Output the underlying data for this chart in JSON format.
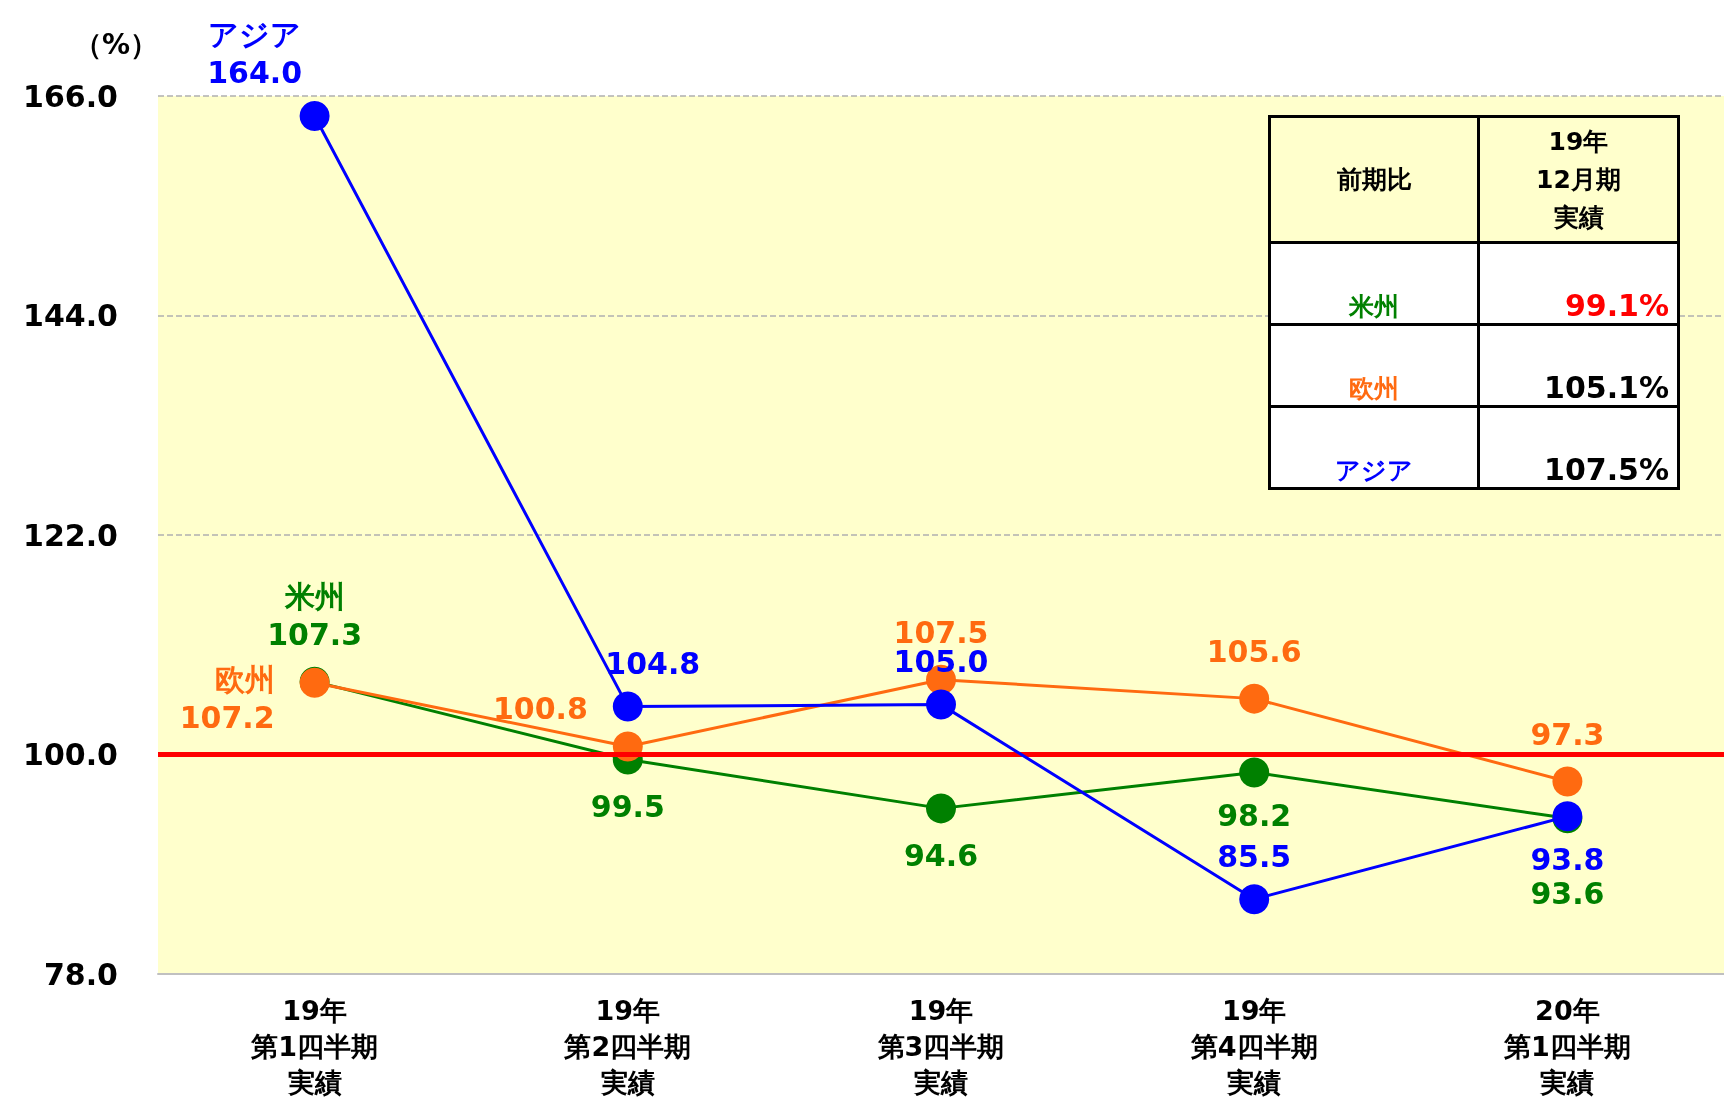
{
  "chart_data": [
    {
      "type": "line",
      "ylabel": "（%）",
      "categories": [
        "19年第1四半期実績",
        "19年第2四半期実績",
        "19年第3四半期実績",
        "19年第4四半期実績",
        "20年第1四半期実績"
      ],
      "series": [
        {
          "name": "米州",
          "color": "#008000",
          "values": [
            107.3,
            99.5,
            94.6,
            98.2,
            93.6
          ],
          "value_labels": [
            "107.3",
            "99.5",
            "94.6",
            "98.2",
            "93.6"
          ]
        },
        {
          "name": "欧州",
          "color": "#ff6a10",
          "values": [
            107.2,
            100.8,
            107.5,
            105.6,
            97.3
          ],
          "value_labels": [
            "107.2",
            "100.8",
            "107.5",
            "105.6",
            "97.3"
          ]
        },
        {
          "name": "アジア",
          "color": "#0000ff",
          "values": [
            164.0,
            104.8,
            105.0,
            85.5,
            93.8
          ],
          "value_labels": [
            "164.0",
            "104.8",
            "105.0",
            "85.5",
            "93.8"
          ]
        }
      ],
      "ylim": [
        78,
        166
      ],
      "yticks": [
        {
          "value": 78,
          "label": "78.0"
        },
        {
          "value": 100,
          "label": "100.0"
        },
        {
          "value": 122,
          "label": "122.0"
        },
        {
          "value": 144,
          "label": "144.0"
        },
        {
          "value": 166,
          "label": "166.0"
        }
      ],
      "grid": "y",
      "legend": false,
      "marker": "circle",
      "line_style": "solid",
      "ref_lines": [
        {
          "axis": "y",
          "value": 100,
          "color": "#ff0000"
        }
      ]
    },
    {
      "type": "other",
      "annotations": [
        "前期比",
        "19年12月期実績",
        "米州",
        "99.1%",
        "欧州",
        "105.1%",
        "アジア",
        "107.5%"
      ]
    }
  ]
}
